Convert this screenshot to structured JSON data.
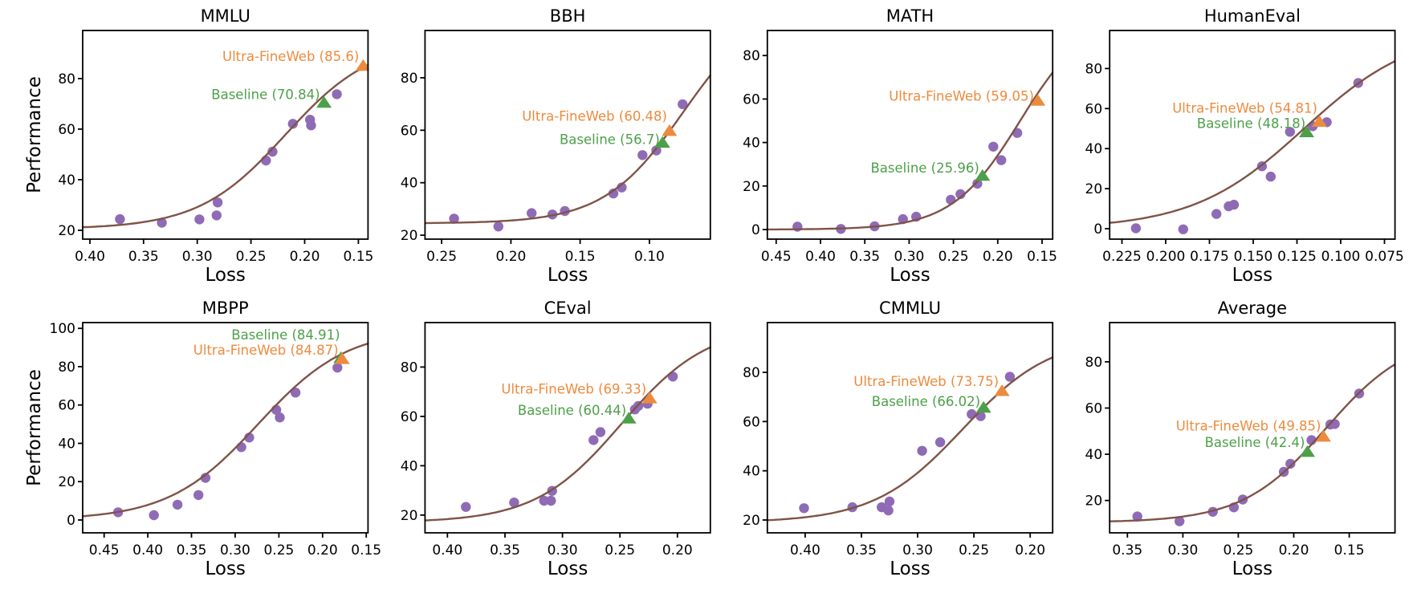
{
  "figure": {
    "background": "#ffffff",
    "ylabel": "Performance",
    "xlabel": "Loss"
  },
  "colors": {
    "scatter": "#8f6bb5",
    "curve": "#7f5347",
    "ultra_fineweb": "#ec8b3e",
    "baseline": "#4da04a",
    "axis": "#000000"
  },
  "legend": {
    "series_scatter": "checkpoint data points",
    "series_curve": "fitted scaling curve",
    "series_ultra": "Ultra-FineWeb",
    "series_baseline": "Baseline"
  },
  "chart_data": [
    {
      "type": "scatter",
      "title": "MMLU",
      "xlabel": "Loss",
      "ylabel": "Performance",
      "x_tick_labels": [
        "0.40",
        "0.35",
        "0.30",
        "0.25",
        "0.20",
        "0.15"
      ],
      "y_tick_labels": [
        "20",
        "40",
        "60",
        "80"
      ],
      "xlim": [
        0.4067,
        0.141
      ],
      "ylim": [
        16.5,
        99
      ],
      "x_axis_inverted": true,
      "points": [
        [
          0.372,
          24.4
        ],
        [
          0.333,
          23.0
        ],
        [
          0.298,
          24.3
        ],
        [
          0.282,
          25.9
        ],
        [
          0.281,
          31.0
        ],
        [
          0.236,
          47.6
        ],
        [
          0.23,
          51.1
        ],
        [
          0.211,
          62.1
        ],
        [
          0.195,
          63.7
        ],
        [
          0.194,
          61.5
        ],
        [
          0.17,
          73.8
        ]
      ],
      "curve_fit": {
        "low": 20.5,
        "high": 95,
        "mid": 0.218,
        "steep": 24.7
      },
      "annotations": {
        "ultra_fineweb": {
          "label": "Ultra-FineWeb (85.6)",
          "value": 85.6,
          "marker": [
            0.1455,
            85.1
          ],
          "label_pos": [
            0.1493,
            88.9
          ]
        },
        "baseline": {
          "label": "Baseline (70.84)",
          "value": 70.84,
          "marker": [
            0.182,
            70.5
          ],
          "label_pos": [
            0.1857,
            73.7
          ]
        }
      }
    },
    {
      "type": "scatter",
      "title": "BBH",
      "xlabel": "Loss",
      "ylabel": null,
      "x_tick_labels": [
        "0.25",
        "0.20",
        "0.15",
        "0.10"
      ],
      "y_tick_labels": [
        "20",
        "40",
        "60",
        "80"
      ],
      "xlim": [
        0.262,
        0.056
      ],
      "ylim": [
        18.5,
        98
      ],
      "x_axis_inverted": true,
      "points": [
        [
          0.241,
          26.3
        ],
        [
          0.209,
          23.3
        ],
        [
          0.185,
          28.4
        ],
        [
          0.17,
          27.9
        ],
        [
          0.161,
          29.2
        ],
        [
          0.126,
          35.9
        ],
        [
          0.12,
          38.2
        ],
        [
          0.105,
          50.5
        ],
        [
          0.095,
          52.3
        ],
        [
          0.076,
          69.9
        ]
      ],
      "curve_fit": {
        "low": 24.5,
        "high": 110,
        "mid": 0.0751,
        "steep": 34.7
      },
      "annotations": {
        "ultra_fineweb": {
          "label": "Ultra-FineWeb (60.48)",
          "value": 60.48,
          "marker": [
            0.0855,
            59.8
          ],
          "label_pos": [
            0.0872,
            65.5
          ]
        },
        "baseline": {
          "label": "Baseline (56.7)",
          "value": 56.7,
          "marker": [
            0.0905,
            55.3
          ],
          "label_pos": [
            0.0925,
            56.5
          ]
        }
      }
    },
    {
      "type": "scatter",
      "title": "MATH",
      "xlabel": "Loss",
      "ylabel": null,
      "x_tick_labels": [
        "0.45",
        "0.40",
        "0.35",
        "0.30",
        "0.25",
        "0.20",
        "0.15"
      ],
      "y_tick_labels": [
        "0",
        "20",
        "40",
        "60",
        "80"
      ],
      "xlim": [
        0.46,
        0.138
      ],
      "ylim": [
        -4.4,
        91.5
      ],
      "x_axis_inverted": true,
      "points": [
        [
          0.426,
          1.3
        ],
        [
          0.377,
          0.3
        ],
        [
          0.339,
          1.5
        ],
        [
          0.307,
          4.8
        ],
        [
          0.292,
          5.9
        ],
        [
          0.253,
          13.7
        ],
        [
          0.242,
          16.3
        ],
        [
          0.223,
          21.1
        ],
        [
          0.205,
          38.1
        ],
        [
          0.196,
          31.9
        ],
        [
          0.178,
          44.4
        ]
      ],
      "curve_fit": {
        "low": 0,
        "high": 100,
        "mid": 0.1747,
        "steep": 26
      },
      "annotations": {
        "ultra_fineweb": {
          "label": "Ultra-FineWeb (59.05)",
          "value": 59.05,
          "marker": [
            0.1548,
            59.3
          ],
          "label_pos": [
            0.159,
            61.5
          ]
        },
        "baseline": {
          "label": "Baseline (25.96)",
          "value": 25.96,
          "marker": [
            0.2172,
            24.8
          ],
          "label_pos": [
            0.2208,
            28.5
          ]
        }
      }
    },
    {
      "type": "scatter",
      "title": "HumanEval",
      "xlabel": "Loss",
      "ylabel": null,
      "x_tick_labels": [
        "0.225",
        "0.200",
        "0.175",
        "0.150",
        "0.125",
        "0.100",
        "0.075"
      ],
      "y_tick_labels": [
        "0",
        "20",
        "40",
        "60",
        "80"
      ],
      "xlim": [
        0.232,
        0.069
      ],
      "ylim": [
        -5.2,
        99
      ],
      "x_axis_inverted": true,
      "points": [
        [
          0.217,
          0.2
        ],
        [
          0.19,
          -0.3
        ],
        [
          0.171,
          7.4
        ],
        [
          0.164,
          11.2
        ],
        [
          0.161,
          12.0
        ],
        [
          0.145,
          31.2
        ],
        [
          0.14,
          26.0
        ],
        [
          0.129,
          48.4
        ],
        [
          0.116,
          51.2
        ],
        [
          0.108,
          53.2
        ],
        [
          0.09,
          72.8
        ]
      ],
      "curve_fit": {
        "low": 0,
        "high": 100,
        "mid": 0.1209,
        "steep": 31.5
      },
      "annotations": {
        "ultra_fineweb": {
          "label": "Ultra-FineWeb (54.81)",
          "value": 54.81,
          "marker": [
            0.1122,
            53.5
          ],
          "label_pos": [
            0.1133,
            60.3
          ]
        },
        "baseline": {
          "label": "Baseline (48.18)",
          "value": 48.18,
          "marker": [
            0.1195,
            48.3
          ],
          "label_pos": [
            0.1201,
            52.7
          ]
        }
      }
    },
    {
      "type": "scatter",
      "title": "MBPP",
      "xlabel": "Loss",
      "ylabel": "Performance",
      "x_tick_labels": [
        "0.45",
        "0.40",
        "0.35",
        "0.30",
        "0.25",
        "0.20",
        "0.15"
      ],
      "y_tick_labels": [
        "0",
        "20",
        "40",
        "60",
        "80",
        "100"
      ],
      "xlim": [
        0.4745,
        0.148
      ],
      "ylim": [
        -6.7,
        103
      ],
      "x_axis_inverted": true,
      "points": [
        [
          0.434,
          4.0
        ],
        [
          0.393,
          2.5
        ],
        [
          0.366,
          8.0
        ],
        [
          0.342,
          13.0
        ],
        [
          0.334,
          22.0
        ],
        [
          0.293,
          38.0
        ],
        [
          0.284,
          43.0
        ],
        [
          0.253,
          57.5
        ],
        [
          0.249,
          53.5
        ],
        [
          0.231,
          66.5
        ],
        [
          0.183,
          79.5
        ]
      ],
      "curve_fit": {
        "low": 0,
        "high": 100,
        "mid": 0.2738,
        "steep": 19.5
      },
      "annotations": {
        "ultra_fineweb": {
          "label": "Ultra-FineWeb (84.87)",
          "value": 84.87,
          "marker": [
            0.1776,
            84.1
          ],
          "label_pos": [
            0.1818,
            88.8
          ]
        },
        "baseline": {
          "label": "Baseline (84.91)",
          "value": 84.91,
          "marker": [
            0.179,
            84.6
          ],
          "label_pos": [
            0.18,
            96.7
          ]
        }
      }
    },
    {
      "type": "scatter",
      "title": "CEval",
      "xlabel": "Loss",
      "ylabel": null,
      "x_tick_labels": [
        "0.40",
        "0.35",
        "0.30",
        "0.25",
        "0.20"
      ],
      "y_tick_labels": [
        "20",
        "40",
        "60",
        "80"
      ],
      "xlim": [
        0.4195,
        0.1714
      ],
      "ylim": [
        12.8,
        98
      ],
      "x_axis_inverted": true,
      "points": [
        [
          0.384,
          23.3
        ],
        [
          0.342,
          25.1
        ],
        [
          0.316,
          25.8
        ],
        [
          0.31,
          25.8
        ],
        [
          0.309,
          29.8
        ],
        [
          0.273,
          50.4
        ],
        [
          0.267,
          53.6
        ],
        [
          0.237,
          62.8
        ],
        [
          0.234,
          64.2
        ],
        [
          0.226,
          65.1
        ],
        [
          0.204,
          76.1
        ]
      ],
      "curve_fit": {
        "low": 17,
        "high": 97,
        "mid": 0.2486,
        "steep": 26.7
      },
      "annotations": {
        "ultra_fineweb": {
          "label": "Ultra-FineWeb (69.33)",
          "value": 69.33,
          "marker": [
            0.2242,
            67.4
          ],
          "label_pos": [
            0.227,
            71.2
          ]
        },
        "baseline": {
          "label": "Baseline (60.44)",
          "value": 60.44,
          "marker": [
            0.2423,
            59.2
          ],
          "label_pos": [
            0.2444,
            62.5
          ]
        }
      }
    },
    {
      "type": "scatter",
      "title": "CMMLU",
      "xlabel": "Loss",
      "ylabel": null,
      "x_tick_labels": [
        "0.40",
        "0.35",
        "0.30",
        "0.25",
        "0.20"
      ],
      "y_tick_labels": [
        "20",
        "40",
        "60",
        "80"
      ],
      "xlim": [
        0.4336,
        0.18
      ],
      "ylim": [
        14.8,
        100.2
      ],
      "x_axis_inverted": true,
      "points": [
        [
          0.401,
          24.8
        ],
        [
          0.358,
          25.2
        ],
        [
          0.332,
          25.2
        ],
        [
          0.326,
          23.9
        ],
        [
          0.325,
          27.5
        ],
        [
          0.296,
          48.1
        ],
        [
          0.28,
          51.6
        ],
        [
          0.252,
          63.0
        ],
        [
          0.244,
          62.2
        ],
        [
          0.218,
          78.2
        ]
      ],
      "curve_fit": {
        "low": 19,
        "high": 95,
        "mid": 0.2598,
        "steep": 25.3
      },
      "annotations": {
        "ultra_fineweb": {
          "label": "Ultra-FineWeb (73.75)",
          "value": 73.75,
          "marker": [
            0.225,
            72.5
          ],
          "label_pos": [
            0.2279,
            76.4
          ]
        },
        "baseline": {
          "label": "Baseline (66.02)",
          "value": 66.02,
          "marker": [
            0.2414,
            65.7
          ],
          "label_pos": [
            0.2443,
            68.3
          ]
        }
      }
    },
    {
      "type": "scatter",
      "title": "Average",
      "xlabel": "Loss",
      "ylabel": null,
      "x_tick_labels": [
        "0.35",
        "0.30",
        "0.25",
        "0.20",
        "0.15"
      ],
      "y_tick_labels": [
        "20",
        "40",
        "60",
        "80"
      ],
      "xlim": [
        0.366,
        0.1087
      ],
      "ylim": [
        6,
        97
      ],
      "x_axis_inverted": true,
      "points": [
        [
          0.341,
          13.1
        ],
        [
          0.303,
          11.0
        ],
        [
          0.273,
          15.1
        ],
        [
          0.254,
          17.0
        ],
        [
          0.246,
          20.4
        ],
        [
          0.209,
          32.4
        ],
        [
          0.203,
          35.9
        ],
        [
          0.184,
          46.1
        ],
        [
          0.167,
          52.9
        ],
        [
          0.163,
          53.1
        ],
        [
          0.141,
          66.3
        ]
      ],
      "curve_fit": {
        "low": 10.5,
        "high": 92,
        "mid": 0.1709,
        "steep": 26.6
      },
      "annotations": {
        "ultra_fineweb": {
          "label": "Ultra-FineWeb (49.85)",
          "value": 49.85,
          "marker": [
            0.1732,
            47.7
          ],
          "label_pos": [
            0.1754,
            52.3
          ]
        },
        "baseline": {
          "label": "Baseline (42.4)",
          "value": 42.4,
          "marker": [
            0.1877,
            41.1
          ],
          "label_pos": [
            0.1899,
            45.3
          ]
        }
      }
    }
  ]
}
